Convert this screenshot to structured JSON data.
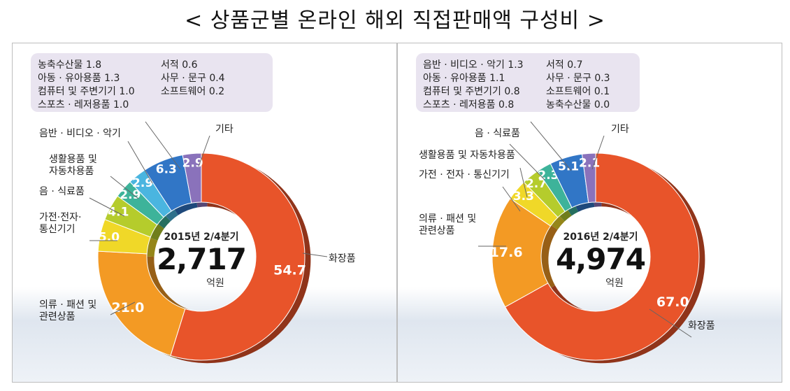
{
  "title": "< 상품군별 온라인 해외 직접판매액 구성비 >",
  "chart_data": [
    {
      "type": "pie",
      "center_label": "2015년 2/4분기",
      "total": "2,717",
      "unit": "억원",
      "slices": [
        {
          "label": "화장품",
          "value": 54.7,
          "color": "#e8542a"
        },
        {
          "label": "의류·패션 및 관련상품",
          "value": 21.0,
          "color": "#f39a24"
        },
        {
          "label": "가전·전자·통신기기",
          "value": 5.0,
          "color": "#f0d828"
        },
        {
          "label": "음·식료품",
          "value": 4.1,
          "color": "#b5cc2c"
        },
        {
          "label": "생활용품 및 자동차용품",
          "value": 2.9,
          "color": "#3db39a"
        },
        {
          "label": "음반·비디오·악기",
          "value": 2.9,
          "color": "#4ab5e0"
        },
        {
          "label": "",
          "value": 6.3,
          "color": "#3176c6"
        },
        {
          "label": "기타",
          "value": 2.9,
          "color": "#8a72bb"
        }
      ],
      "box_items": [
        "농축수산물 1.8",
        "아동 · 유아용품 1.3",
        "컴퓨터 및 주변기기 1.0",
        "스포츠 · 레저용품 1.0",
        "서적 0.6",
        "사무 · 문구 0.4",
        "소프트웨어 0.2"
      ]
    },
    {
      "type": "pie",
      "center_label": "2016년 2/4분기",
      "total": "4,974",
      "unit": "억원",
      "slices": [
        {
          "label": "화장품",
          "value": 67.0,
          "color": "#e8542a"
        },
        {
          "label": "의류·패션 및 관련상품",
          "value": 17.6,
          "color": "#f39a24"
        },
        {
          "label": "가전·전자·통신기기",
          "value": 3.3,
          "color": "#f0d828"
        },
        {
          "label": "생활용품 및 자동차용품",
          "value": 2.7,
          "color": "#b5cc2c"
        },
        {
          "label": "음·식료품",
          "value": 2.3,
          "color": "#3db39a"
        },
        {
          "label": "",
          "value": 5.1,
          "color": "#3176c6"
        },
        {
          "label": "기타",
          "value": 2.1,
          "color": "#8a72bb"
        }
      ],
      "box_items": [
        "음반 · 비디오 · 악기 1.3",
        "아동 · 유아용품 1.1",
        "컴퓨터 및 주변기기 0.8",
        "스포츠 · 레저용품 0.8",
        "서적 0.7",
        "사무 · 문구 0.3",
        "소프트웨어 0.1",
        "농축수산물 0.0"
      ]
    }
  ]
}
